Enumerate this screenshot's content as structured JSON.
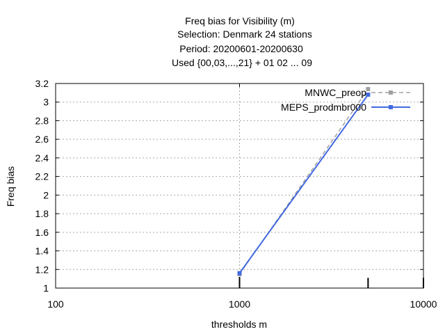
{
  "chart_data": {
    "type": "line",
    "title_lines": [
      "Freq bias  for Visibility (m)",
      "Selection: Denmark     24 stations",
      "Period: 20200601-20200630",
      "Used {00,03,...,21} + 01 02 ... 09"
    ],
    "xlabel": "thresholds m",
    "ylabel": "Freq bias",
    "x_scale": "log",
    "xlim": [
      100,
      10000
    ],
    "ylim": [
      1,
      3.2
    ],
    "x_ticks": [
      100,
      1000,
      10000
    ],
    "x_tick_labels": [
      "100",
      "1000",
      "10000"
    ],
    "y_ticks": [
      1,
      1.2,
      1.4,
      1.6,
      1.8,
      2,
      2.2,
      2.4,
      2.6,
      2.8,
      3,
      3.2
    ],
    "y_tick_labels": [
      "1",
      "1.2",
      "1.4",
      "1.6",
      "1.8",
      "2",
      "2.2",
      "2.4",
      "2.6",
      "2.8",
      "3",
      "3.2"
    ],
    "grid": true,
    "legend_position": "top-right",
    "series": [
      {
        "name": "MNWC_preop",
        "color": "#a0a0a0",
        "dash": "dashed",
        "x": [
          1000,
          5000
        ],
        "y": [
          1.15,
          3.14
        ]
      },
      {
        "name": "MEPS_prodmbr000",
        "color": "#4169e1",
        "dash": "solid",
        "x": [
          1000,
          5000
        ],
        "y": [
          1.16,
          3.08
        ]
      }
    ],
    "count_marks": [
      {
        "x": 1000,
        "level": 1.12
      },
      {
        "x": 5000,
        "level": 1.11
      },
      {
        "x": 10000,
        "level": 1.11
      }
    ]
  }
}
